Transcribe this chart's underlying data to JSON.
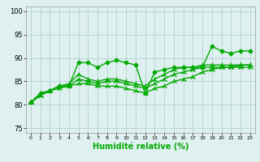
{
  "title": "",
  "xlabel": "Humidité relative (%)",
  "ylabel": "",
  "xlim": [
    -0.5,
    23.5
  ],
  "ylim": [
    74,
    101
  ],
  "yticks": [
    75,
    80,
    85,
    90,
    95,
    100
  ],
  "xticks": [
    0,
    1,
    2,
    3,
    4,
    5,
    6,
    7,
    8,
    9,
    10,
    11,
    12,
    13,
    14,
    15,
    16,
    17,
    18,
    19,
    20,
    21,
    22,
    23
  ],
  "bg_color": "#dff0f0",
  "grid_color": "#aacccc",
  "line_color": "#00aa00",
  "series": [
    {
      "x": [
        0,
        1,
        2,
        3,
        4,
        5,
        6,
        7,
        8,
        9,
        10,
        11,
        12,
        13,
        14,
        15,
        16,
        17,
        18,
        19,
        20,
        21,
        22,
        23
      ],
      "y": [
        80.5,
        82.5,
        83,
        84,
        84,
        89,
        89,
        88,
        89,
        89.5,
        89,
        88.5,
        82.5,
        87,
        87.5,
        88,
        88,
        88,
        88,
        92.5,
        91.5,
        91,
        91.5,
        91.5
      ],
      "marker": "D",
      "markersize": 2.5,
      "linewidth": 1.0
    },
    {
      "x": [
        0,
        1,
        2,
        3,
        4,
        5,
        6,
        7,
        8,
        9,
        10,
        11,
        12,
        13,
        14,
        15,
        16,
        17,
        18,
        19,
        20,
        21,
        22,
        23
      ],
      "y": [
        80.5,
        82,
        83,
        84,
        84.5,
        86.5,
        85.5,
        85,
        85.5,
        85.5,
        85,
        84.5,
        84,
        85.5,
        86.5,
        87.5,
        88,
        88,
        88.5,
        88.5,
        88.5,
        88.5,
        88.5,
        88.5
      ],
      "marker": "2",
      "markersize": 5,
      "linewidth": 1.0
    },
    {
      "x": [
        0,
        1,
        2,
        3,
        4,
        5,
        6,
        7,
        8,
        9,
        10,
        11,
        12,
        13,
        14,
        15,
        16,
        17,
        18,
        19,
        20,
        21,
        22,
        23
      ],
      "y": [
        80.5,
        82,
        83,
        84,
        84,
        85.5,
        85,
        84.5,
        85,
        85,
        84.5,
        84,
        83.5,
        84.5,
        85.5,
        86.5,
        87,
        87.5,
        88,
        88,
        88,
        88,
        88,
        88
      ],
      "marker": "2",
      "markersize": 5,
      "linewidth": 1.0
    },
    {
      "x": [
        0,
        1,
        2,
        3,
        4,
        5,
        6,
        7,
        8,
        9,
        10,
        11,
        12,
        13,
        14,
        15,
        16,
        17,
        18,
        19,
        20,
        21,
        22,
        23
      ],
      "y": [
        80.5,
        82,
        83,
        83.5,
        84,
        84.5,
        84.5,
        84,
        84,
        84,
        83.5,
        83,
        82.5,
        83.5,
        84,
        85,
        85.5,
        86,
        87,
        87.5,
        88,
        88,
        88.5,
        88.5
      ],
      "marker": "2",
      "markersize": 5,
      "linewidth": 1.0
    }
  ]
}
